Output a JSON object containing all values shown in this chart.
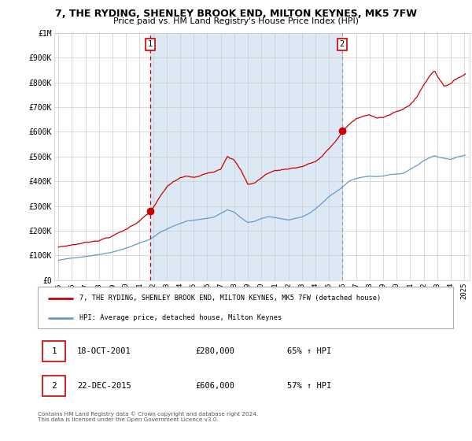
{
  "title_line1": "7, THE RYDING, SHENLEY BROOK END, MILTON KEYNES, MK5 7FW",
  "title_line2": "Price paid vs. HM Land Registry's House Price Index (HPI)",
  "legend_red": "7, THE RYDING, SHENLEY BROOK END, MILTON KEYNES, MK5 7FW (detached house)",
  "legend_blue": "HPI: Average price, detached house, Milton Keynes",
  "annotation1_label": "1",
  "annotation1_date": "18-OCT-2001",
  "annotation1_price": "£280,000",
  "annotation1_pct": "65% ↑ HPI",
  "annotation2_label": "2",
  "annotation2_date": "22-DEC-2015",
  "annotation2_price": "£606,000",
  "annotation2_pct": "57% ↑ HPI",
  "red_color": "#cc0000",
  "blue_color": "#6699cc",
  "bg_color": "#dce9f5",
  "plot_bg": "#ffffff",
  "grid_color": "#cccccc",
  "vline1_x": 2001.8,
  "vline2_x": 2015.97,
  "sale1_y": 280000,
  "sale2_y": 606000,
  "footnote": "Contains HM Land Registry data © Crown copyright and database right 2024.\nThis data is licensed under the Open Government Licence v3.0.",
  "ylim_max": 1000000,
  "yticks": [
    0,
    100000,
    200000,
    300000,
    400000,
    500000,
    600000,
    700000,
    800000,
    900000,
    1000000
  ],
  "ytick_labels": [
    "£0",
    "£100K",
    "£200K",
    "£300K",
    "£400K",
    "£500K",
    "£600K",
    "£700K",
    "£800K",
    "£900K",
    "£1M"
  ],
  "xmin": 1994.7,
  "xmax": 2025.4,
  "xtick_years": [
    1995,
    1996,
    1997,
    1998,
    1999,
    2000,
    2001,
    2002,
    2003,
    2004,
    2005,
    2006,
    2007,
    2008,
    2009,
    2010,
    2011,
    2012,
    2013,
    2014,
    2015,
    2016,
    2017,
    2018,
    2019,
    2020,
    2021,
    2022,
    2023,
    2024,
    2025
  ]
}
